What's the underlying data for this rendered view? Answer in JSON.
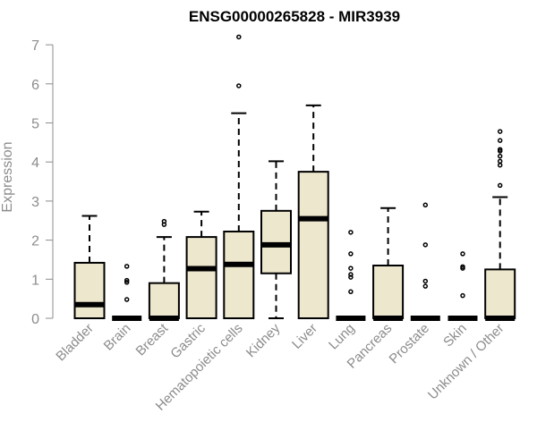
{
  "chart_data": {
    "type": "box",
    "title": "ENSG00000265828 - MIR3939",
    "xlabel": "",
    "ylabel": "Expression",
    "ylim": [
      0,
      7
    ],
    "yticks": [
      "0",
      "1",
      "2",
      "3",
      "4",
      "5",
      "6",
      "7"
    ],
    "grid": false,
    "colors": {
      "box_fill": "#ede7cd",
      "stroke": "#000000",
      "axis": "#8c8c8c"
    },
    "categories": [
      "Bladder",
      "Brain",
      "Breast",
      "Gastric",
      "Hematopoietic cells",
      "Kidney",
      "Liver",
      "Lung",
      "Pancreas",
      "Prostate",
      "Skin",
      "Unknown / Other"
    ],
    "boxes": [
      {
        "whisker_low": 0,
        "q1": 0,
        "median": 0.35,
        "q3": 1.42,
        "whisker_high": 2.62,
        "outliers": []
      },
      {
        "whisker_low": 0,
        "q1": 0,
        "median": 0,
        "q3": 0,
        "whisker_high": 0,
        "outliers": [
          0.48,
          0.92,
          0.97,
          1.33
        ]
      },
      {
        "whisker_low": 0,
        "q1": 0,
        "median": 0,
        "q3": 0.9,
        "whisker_high": 2.08,
        "outliers": [
          2.4,
          2.48
        ]
      },
      {
        "whisker_low": 0,
        "q1": 0,
        "median": 1.27,
        "q3": 2.08,
        "whisker_high": 2.73,
        "outliers": []
      },
      {
        "whisker_low": 0,
        "q1": 0,
        "median": 1.38,
        "q3": 2.22,
        "whisker_high": 5.25,
        "outliers": [
          5.95,
          7.2
        ]
      },
      {
        "whisker_low": 0,
        "q1": 1.15,
        "median": 1.88,
        "q3": 2.75,
        "whisker_high": 4.02,
        "outliers": []
      },
      {
        "whisker_low": 0,
        "q1": 0,
        "median": 2.55,
        "q3": 3.75,
        "whisker_high": 5.45,
        "outliers": []
      },
      {
        "whisker_low": 0,
        "q1": 0,
        "median": 0,
        "q3": 0,
        "whisker_high": 0,
        "outliers": [
          0.68,
          1.05,
          1.12,
          1.28,
          1.65,
          2.2
        ]
      },
      {
        "whisker_low": 0,
        "q1": 0,
        "median": 0,
        "q3": 1.35,
        "whisker_high": 2.82,
        "outliers": []
      },
      {
        "whisker_low": 0,
        "q1": 0,
        "median": 0,
        "q3": 0,
        "whisker_high": 0,
        "outliers": [
          0.82,
          0.95,
          1.88,
          2.9
        ]
      },
      {
        "whisker_low": 0,
        "q1": 0,
        "median": 0,
        "q3": 0,
        "whisker_high": 0,
        "outliers": [
          0.58,
          1.28,
          1.32,
          1.65
        ]
      },
      {
        "whisker_low": 0,
        "q1": 0,
        "median": 0,
        "q3": 1.25,
        "whisker_high": 3.1,
        "outliers": [
          3.4,
          3.92,
          4.02,
          4.15,
          4.28,
          4.32,
          4.55,
          4.78
        ]
      }
    ]
  }
}
